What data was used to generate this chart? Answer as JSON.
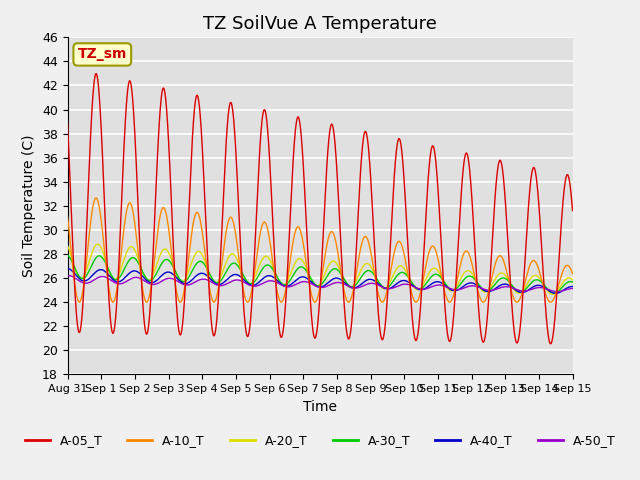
{
  "title": "TZ SoilVue A Temperature",
  "ylabel": "Soil Temperature (C)",
  "xlabel": "Time",
  "ylim": [
    18,
    46
  ],
  "yticks": [
    18,
    20,
    22,
    24,
    26,
    28,
    30,
    32,
    34,
    36,
    38,
    40,
    42,
    44,
    46
  ],
  "xtick_labels": [
    "Aug 31",
    "Sep 1",
    "Sep 2",
    "Sep 3",
    "Sep 4",
    "Sep 5",
    "Sep 6",
    "Sep 7",
    "Sep 8",
    "Sep 9",
    "Sep 10",
    "Sep 11",
    "Sep 12",
    "Sep 13",
    "Sep 14",
    "Sep 15"
  ],
  "series_colors": {
    "A-05_T": "#dd0000",
    "A-10_T": "#ff8800",
    "A-20_T": "#dddd00",
    "A-30_T": "#00cc00",
    "A-40_T": "#0000cc",
    "A-50_T": "#9900cc"
  },
  "legend_labels": [
    "A-05_T",
    "A-10_T",
    "A-20_T",
    "A-30_T",
    "A-40_T",
    "A-50_T"
  ],
  "annotation_text": "TZ_sm",
  "annotation_color": "#cc0000",
  "annotation_bg": "#ffffcc",
  "background_color": "#e0e0e0",
  "grid_color": "#ffffff",
  "title_fontsize": 13,
  "axis_fontsize": 10,
  "tick_fontsize": 9
}
